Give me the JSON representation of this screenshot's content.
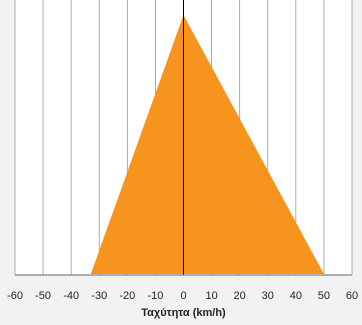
{
  "chart_data": {
    "type": "area",
    "title": "",
    "xlabel": "Ταχύτητα (km/h)",
    "ylabel": "",
    "xlim": [
      -60,
      60
    ],
    "x_ticks": [
      -60,
      -50,
      -40,
      -30,
      -20,
      -10,
      0,
      10,
      20,
      30,
      40,
      50,
      60
    ],
    "x_tick_labels": [
      "-60",
      "-50",
      "-40",
      "-30",
      "-20",
      "-10",
      "0",
      "10",
      "20",
      "30",
      "40",
      "50",
      "60"
    ],
    "grid": "vertical",
    "shape": {
      "apex_x": 0,
      "base_left_x": -33,
      "base_right_x": 50
    },
    "colors": {
      "fill": "#f7941d",
      "background": "#f2f2f2",
      "plot_background": "#ffffff",
      "grid": "#999999",
      "zero_line": "#000000",
      "axis": "#666666"
    }
  }
}
